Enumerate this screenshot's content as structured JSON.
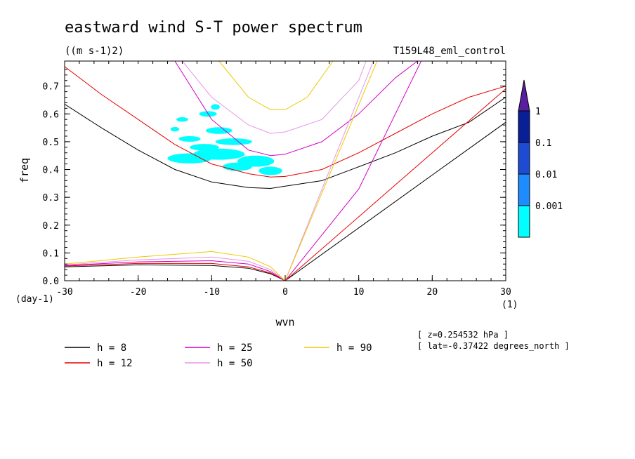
{
  "chart_data": {
    "type": "line",
    "title": "eastward wind S-T power spectrum",
    "units": "((m s-1)2)",
    "run_label": "T159L48_eml_control",
    "xlabel": "wvn",
    "ylabel": "freq",
    "x_unit": "(1)",
    "y_unit": "(day-1)",
    "xlim": [
      -30,
      30
    ],
    "ylim": [
      0,
      0.79
    ],
    "xticks": [
      -30,
      -20,
      -10,
      0,
      10,
      20,
      30
    ],
    "xtick_labels": [
      "-30",
      "-20",
      "-10",
      "0",
      "10",
      "20",
      "30"
    ],
    "yticks": [
      0,
      0.1,
      0.2,
      0.3,
      0.4,
      0.5,
      0.6,
      0.7
    ],
    "ytick_labels": [
      "0.0",
      "0.1",
      "0.2",
      "0.3",
      "0.4",
      "0.5",
      "0.6",
      "0.7"
    ],
    "colorbar": {
      "labels": [
        "1",
        "0.1",
        "0.01",
        "0.001"
      ],
      "colors": [
        "#0a1e96",
        "#1e4bd2",
        "#1e8cff",
        "#00ffff",
        "#5a1ea0"
      ]
    },
    "legend": [
      {
        "label": "h =  8",
        "color": "#000000"
      },
      {
        "label": "h = 12",
        "color": "#e60000"
      },
      {
        "label": "h = 25",
        "color": "#d200c8"
      },
      {
        "label": "h = 50",
        "color": "#e696e6"
      },
      {
        "label": "h = 90",
        "color": "#f0c800"
      }
    ],
    "series": [
      {
        "name": "h =  8",
        "color": "#000000",
        "rossby_gravity_x": [
          -30,
          -25,
          -20,
          -15,
          -10,
          -5,
          -2,
          0
        ],
        "rossby_gravity_y": [
          0.635,
          0.55,
          0.47,
          0.4,
          0.355,
          0.335,
          0.332,
          0.34
        ],
        "ig_x": [
          0,
          5,
          10,
          15,
          20,
          25,
          30
        ],
        "ig_y": [
          0.34,
          0.36,
          0.41,
          0.46,
          0.52,
          0.57,
          0.66
        ],
        "kelvin_x": [
          0,
          10,
          20,
          30
        ],
        "kelvin_y": [
          0,
          0.19,
          0.38,
          0.57
        ],
        "mrg_low_x": [
          -30,
          -20,
          -10,
          -5,
          -2,
          0
        ],
        "mrg_low_y": [
          0.05,
          0.057,
          0.055,
          0.045,
          0.025,
          0
        ]
      },
      {
        "name": "h = 12",
        "color": "#e60000",
        "rossby_gravity_x": [
          -30,
          -25,
          -20,
          -15,
          -10,
          -5,
          -2,
          0
        ],
        "rossby_gravity_y": [
          0.77,
          0.67,
          0.58,
          0.49,
          0.42,
          0.385,
          0.373,
          0.375
        ],
        "ig_x": [
          0,
          5,
          10,
          15,
          20,
          25,
          30
        ],
        "ig_y": [
          0.375,
          0.4,
          0.46,
          0.53,
          0.6,
          0.66,
          0.7
        ],
        "kelvin_x": [
          0,
          10,
          20,
          30
        ],
        "kelvin_y": [
          0,
          0.23,
          0.46,
          0.69
        ],
        "mrg_low_x": [
          -30,
          -20,
          -10,
          -5,
          -2,
          0
        ],
        "mrg_low_y": [
          0.053,
          0.062,
          0.062,
          0.05,
          0.028,
          0
        ]
      },
      {
        "name": "h = 25",
        "color": "#d200c8",
        "rossby_gravity_x": [
          -15,
          -10,
          -5,
          -2,
          0
        ],
        "rossby_gravity_y": [
          0.79,
          0.58,
          0.47,
          0.45,
          0.455
        ],
        "ig_x": [
          0,
          5,
          10,
          15,
          18
        ],
        "ig_y": [
          0.455,
          0.5,
          0.6,
          0.73,
          0.79
        ],
        "kelvin_x": [
          0,
          10,
          18.5
        ],
        "kelvin_y": [
          0,
          0.33,
          0.79
        ],
        "mrg_low_x": [
          -30,
          -20,
          -10,
          -5,
          -2,
          0
        ],
        "mrg_low_y": [
          0.055,
          0.068,
          0.072,
          0.06,
          0.033,
          0
        ]
      },
      {
        "name": "h = 50",
        "color": "#e696e6",
        "rossby_gravity_x": [
          -14,
          -10,
          -5,
          -2,
          0
        ],
        "rossby_gravity_y": [
          0.79,
          0.66,
          0.56,
          0.53,
          0.535
        ],
        "ig_x": [
          0,
          5,
          10,
          11
        ],
        "ig_y": [
          0.535,
          0.58,
          0.72,
          0.79
        ],
        "kelvin_x": [
          0,
          12
        ],
        "kelvin_y": [
          0,
          0.79
        ],
        "mrg_low_x": [
          -30,
          -20,
          -10,
          -5,
          -2,
          0
        ],
        "mrg_low_y": [
          0.057,
          0.075,
          0.085,
          0.07,
          0.04,
          0
        ]
      },
      {
        "name": "h = 90",
        "color": "#f0c800",
        "rossby_gravity_x": [
          -9,
          -5,
          -2,
          0
        ],
        "rossby_gravity_y": [
          0.79,
          0.66,
          0.615,
          0.615
        ],
        "ig_x": [
          0,
          3,
          6.5
        ],
        "ig_y": [
          0.615,
          0.66,
          0.79
        ],
        "kelvin_x": [
          0,
          12.5
        ],
        "kelvin_y": [
          0,
          0.79
        ],
        "mrg_low_x": [
          -30,
          -20,
          -10,
          -5,
          -2,
          0
        ],
        "mrg_low_y": [
          0.06,
          0.085,
          0.105,
          0.085,
          0.05,
          0
        ]
      }
    ],
    "power_patches": [
      {
        "x": -13,
        "y": 0.44,
        "rx": 3.0,
        "ry": 0.018
      },
      {
        "x": -9,
        "y": 0.455,
        "rx": 3.5,
        "ry": 0.02
      },
      {
        "x": -4,
        "y": 0.43,
        "rx": 2.5,
        "ry": 0.02
      },
      {
        "x": -6.5,
        "y": 0.41,
        "rx": 2.0,
        "ry": 0.015
      },
      {
        "x": -2,
        "y": 0.395,
        "rx": 1.6,
        "ry": 0.015
      },
      {
        "x": -11,
        "y": 0.48,
        "rx": 2.0,
        "ry": 0.012
      },
      {
        "x": -7,
        "y": 0.5,
        "rx": 2.5,
        "ry": 0.012
      },
      {
        "x": -13,
        "y": 0.51,
        "rx": 1.5,
        "ry": 0.01
      },
      {
        "x": -9,
        "y": 0.54,
        "rx": 1.8,
        "ry": 0.012
      },
      {
        "x": -10.5,
        "y": 0.6,
        "rx": 1.2,
        "ry": 0.01
      },
      {
        "x": -14,
        "y": 0.58,
        "rx": 0.8,
        "ry": 0.008
      },
      {
        "x": -9.5,
        "y": 0.625,
        "rx": 0.6,
        "ry": 0.01
      },
      {
        "x": -15,
        "y": 0.545,
        "rx": 0.6,
        "ry": 0.008
      }
    ]
  },
  "info": {
    "z_line": "[ z=0.254532 hPa ]",
    "lat_line": "[ lat=-0.37422 degrees_north ]"
  }
}
